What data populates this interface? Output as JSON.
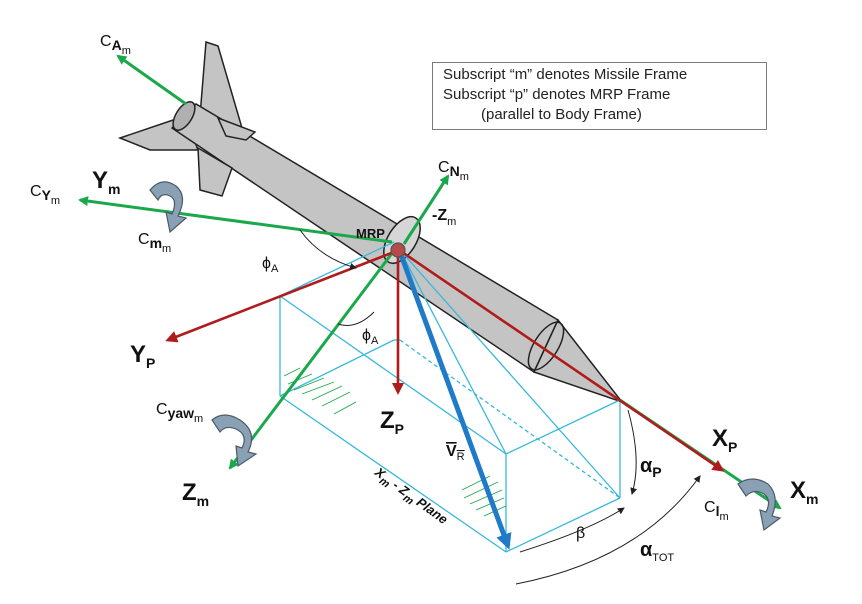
{
  "legend": {
    "line1": "Subscript “m” denotes Missile Frame",
    "line2": "Subscript “p” denotes MRP Frame",
    "line3": "(parallel to Body Frame)"
  },
  "labels": {
    "cA_main": "C",
    "cA_sub": "A",
    "cA_sub2": "m",
    "cN_main": "C",
    "cN_sub": "N",
    "cN_sub2": "m",
    "cY_main": "C",
    "cY_sub": "Y",
    "cY_sub2": "m",
    "cm_main": "C",
    "cm_sub": "m",
    "cm_sub2": "m",
    "cyaw_main": "C",
    "cyaw_sub": "yaw",
    "cyaw_sub2": "m",
    "cl_main": "C",
    "cl_sub": "l",
    "cl_sub2": "m",
    "Ym_main": "Y",
    "Ym_sub": "m",
    "Zm_neg_main": "-Z",
    "Zm_neg_sub": "m",
    "Zm_main": "Z",
    "Zm_sub": "m",
    "Xm_main": "X",
    "Xm_sub": "m",
    "Yp_main": "Y",
    "Yp_sub": "P",
    "Zp_main": "Z",
    "Zp_sub": "P",
    "Xp_main": "X",
    "Xp_sub": "P",
    "mrp": "MRP",
    "phiA1_main": "ϕ",
    "phiA1_sub": "A",
    "phiA2_main": "ϕ",
    "phiA2_sub": "A",
    "vr_main": "V",
    "vr_sub": "R",
    "alphaP_main": "α",
    "alphaP_sub": "P",
    "beta": "β",
    "alphaTot_main": "α",
    "alphaTot_sub": "TOT",
    "plane_a": "X",
    "plane_a_sub": "m",
    "plane_b": " - Z",
    "plane_b_sub": "m",
    "plane_c": "  Plane"
  },
  "colors": {
    "green_axis": "#1aa84a",
    "red_axis": "#b01c1c",
    "blue_vector": "#1f7bc8",
    "box_lines": "#38b8dc",
    "missile_fill": "#c4c4c4",
    "rotation_arrow": "#8aa0b4"
  }
}
